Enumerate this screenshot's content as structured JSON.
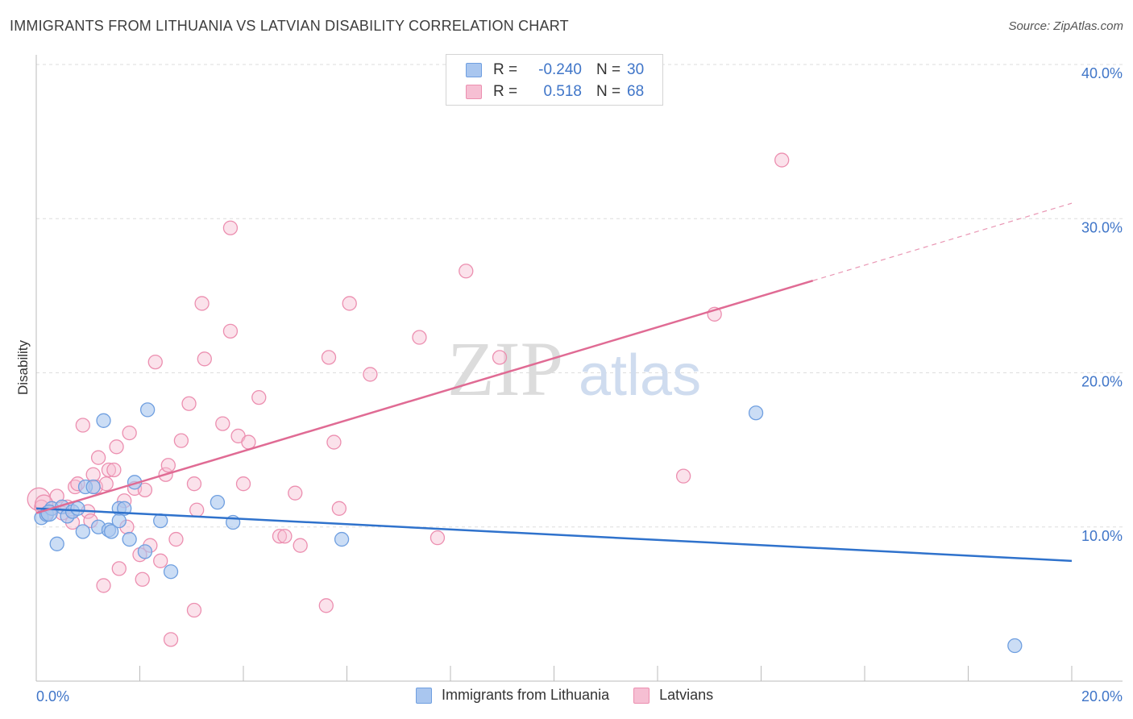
{
  "header": {
    "title": "IMMIGRANTS FROM LITHUANIA VS LATVIAN DISABILITY CORRELATION CHART",
    "source": "Source: ZipAtlas.com"
  },
  "legend": {
    "r_label": "R =",
    "n_label": "N =",
    "series": [
      {
        "r_value": "-0.240",
        "n_value": "30"
      },
      {
        "r_value": "0.518",
        "n_value": "68"
      }
    ]
  },
  "bottom_legend": [
    {
      "label": "Immigrants from Lithuania"
    },
    {
      "label": "Latvians"
    }
  ],
  "watermark": {
    "part1": "ZIP",
    "part2": "atlas"
  },
  "colors": {
    "blue_fill": "#a9c6ef",
    "blue_stroke": "#6f9fe0",
    "blue_line": "#2f72cc",
    "pink_fill": "#f6bfd3",
    "pink_stroke": "#ec8fb0",
    "pink_line": "#e06b94",
    "tick_text": "#3f75c8",
    "grid": "#dddddd"
  },
  "chart_data": {
    "type": "scatter",
    "title": "IMMIGRANTS FROM LITHUANIA VS LATVIAN DISABILITY CORRELATION CHART",
    "xlabel": "",
    "ylabel": "Disability",
    "xlim": [
      0,
      20
    ],
    "ylim": [
      0,
      40
    ],
    "x_tick_labels": [
      {
        "v": 0,
        "label": "0.0%"
      },
      {
        "v": 20,
        "label": "20.0%"
      }
    ],
    "y_tick_labels": [
      {
        "v": 10,
        "label": "10.0%"
      },
      {
        "v": 20,
        "label": "20.0%"
      },
      {
        "v": 30,
        "label": "30.0%"
      },
      {
        "v": 40,
        "label": "40.0%"
      }
    ],
    "x_minor_ticks": [
      0,
      2,
      4,
      6,
      8,
      10,
      12,
      14,
      16,
      18,
      20
    ],
    "series": [
      {
        "name": "Immigrants from Lithuania",
        "r": -0.24,
        "n": 30,
        "trend": {
          "x0": 0,
          "y0": 11.2,
          "x1": 20,
          "y1": 7.8,
          "dashed_from": null
        },
        "points": [
          [
            0.1,
            10.6
          ],
          [
            0.2,
            10.8
          ],
          [
            0.3,
            11.2
          ],
          [
            0.4,
            8.9
          ],
          [
            0.5,
            11.3
          ],
          [
            0.6,
            10.7
          ],
          [
            0.7,
            11.0
          ],
          [
            0.8,
            11.2
          ],
          [
            0.9,
            9.7
          ],
          [
            0.95,
            12.6
          ],
          [
            1.1,
            12.6
          ],
          [
            1.2,
            10.0
          ],
          [
            1.3,
            16.9
          ],
          [
            1.4,
            9.8
          ],
          [
            1.45,
            9.7
          ],
          [
            1.6,
            11.2
          ],
          [
            1.6,
            10.4
          ],
          [
            1.7,
            11.2
          ],
          [
            1.8,
            9.2
          ],
          [
            1.9,
            12.9
          ],
          [
            2.1,
            8.4
          ],
          [
            2.15,
            17.6
          ],
          [
            2.4,
            10.4
          ],
          [
            2.6,
            7.1
          ],
          [
            3.5,
            11.6
          ],
          [
            3.8,
            10.3
          ],
          [
            5.9,
            9.2
          ],
          [
            13.9,
            17.4
          ],
          [
            18.9,
            2.3
          ],
          [
            0.25,
            10.9
          ]
        ]
      },
      {
        "name": "Latvians",
        "r": 0.518,
        "n": 68,
        "trend": {
          "x0": 0,
          "y0": 10.9,
          "x1": 20,
          "y1": 31.0,
          "dashed_from": 15.0
        },
        "points": [
          [
            0.05,
            11.8
          ],
          [
            0.1,
            11.3
          ],
          [
            0.2,
            10.9
          ],
          [
            0.3,
            11.2
          ],
          [
            0.4,
            12.0
          ],
          [
            0.5,
            10.9
          ],
          [
            0.6,
            11.3
          ],
          [
            0.7,
            10.3
          ],
          [
            0.75,
            12.6
          ],
          [
            0.8,
            12.8
          ],
          [
            0.9,
            16.6
          ],
          [
            1.0,
            11.0
          ],
          [
            1.05,
            10.4
          ],
          [
            1.1,
            13.4
          ],
          [
            1.15,
            12.6
          ],
          [
            1.2,
            14.5
          ],
          [
            1.3,
            6.2
          ],
          [
            1.35,
            12.8
          ],
          [
            1.4,
            13.7
          ],
          [
            1.5,
            13.7
          ],
          [
            1.55,
            15.2
          ],
          [
            1.6,
            7.3
          ],
          [
            1.7,
            11.7
          ],
          [
            1.75,
            10.0
          ],
          [
            1.8,
            16.1
          ],
          [
            1.9,
            12.5
          ],
          [
            2.0,
            8.2
          ],
          [
            2.05,
            6.6
          ],
          [
            2.1,
            12.4
          ],
          [
            2.2,
            8.8
          ],
          [
            2.3,
            20.7
          ],
          [
            2.4,
            7.8
          ],
          [
            2.5,
            13.4
          ],
          [
            2.55,
            14.0
          ],
          [
            2.6,
            2.7
          ],
          [
            2.7,
            9.2
          ],
          [
            2.8,
            15.6
          ],
          [
            2.95,
            18.0
          ],
          [
            3.05,
            12.8
          ],
          [
            3.05,
            4.6
          ],
          [
            3.1,
            11.1
          ],
          [
            3.2,
            24.5
          ],
          [
            3.25,
            20.9
          ],
          [
            3.6,
            16.7
          ],
          [
            3.75,
            22.7
          ],
          [
            3.75,
            29.4
          ],
          [
            3.9,
            15.9
          ],
          [
            4.0,
            12.8
          ],
          [
            4.1,
            15.5
          ],
          [
            4.3,
            18.4
          ],
          [
            4.7,
            9.4
          ],
          [
            4.8,
            9.4
          ],
          [
            5.0,
            12.2
          ],
          [
            5.1,
            8.8
          ],
          [
            5.6,
            4.9
          ],
          [
            5.65,
            21.0
          ],
          [
            5.75,
            15.5
          ],
          [
            5.85,
            11.2
          ],
          [
            6.05,
            24.5
          ],
          [
            6.45,
            19.9
          ],
          [
            7.4,
            22.3
          ],
          [
            7.75,
            9.3
          ],
          [
            8.3,
            26.6
          ],
          [
            8.95,
            21.0
          ],
          [
            12.5,
            13.3
          ],
          [
            13.1,
            23.8
          ],
          [
            14.4,
            33.8
          ],
          [
            0.15,
            11.5
          ]
        ]
      }
    ]
  }
}
